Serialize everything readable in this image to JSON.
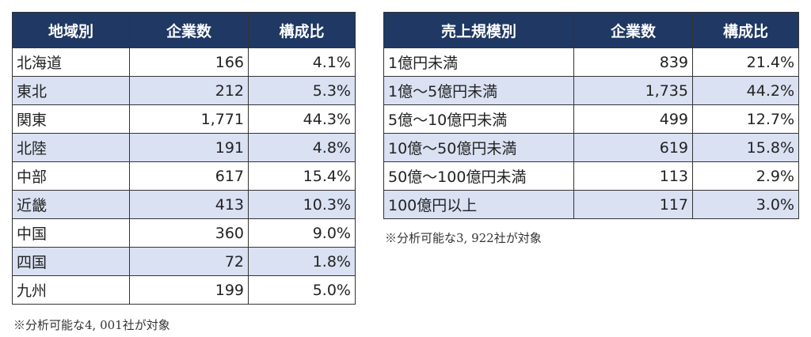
{
  "region_table": {
    "headers": [
      "地域別",
      "企業数",
      "構成比"
    ],
    "rows": [
      [
        "北海道",
        "166",
        "4.1%"
      ],
      [
        "東北",
        "212",
        "5.3%"
      ],
      [
        "関東",
        "1,771",
        "44.3%"
      ],
      [
        "北陸",
        "191",
        "4.8%"
      ],
      [
        "中部",
        "617",
        "15.4%"
      ],
      [
        "近畿",
        "413",
        "10.3%"
      ],
      [
        "中国",
        "360",
        "9.0%"
      ],
      [
        "四国",
        "72",
        "1.8%"
      ],
      [
        "九州",
        "199",
        "5.0%"
      ]
    ],
    "note": "※分析可能な4, 001社が対象"
  },
  "sales_table": {
    "headers": [
      "売上規模別",
      "企業数",
      "構成比"
    ],
    "rows": [
      [
        "1億円未満",
        "839",
        "21.4%"
      ],
      [
        "1億～5億円未満",
        "1,735",
        "44.2%"
      ],
      [
        "5億～10億円未満",
        "499",
        "12.7%"
      ],
      [
        "10億～50億円未満",
        "619",
        "15.8%"
      ],
      [
        "50億～100億円未満",
        "113",
        "2.9%"
      ],
      [
        "100億円以上",
        "117",
        "3.0%"
      ]
    ],
    "note": "※分析可能な3, 922社が対象"
  },
  "colors": {
    "header_bg": "#1f3864",
    "header_text": "#ffffff",
    "alt_row": "#d9e1f2"
  }
}
